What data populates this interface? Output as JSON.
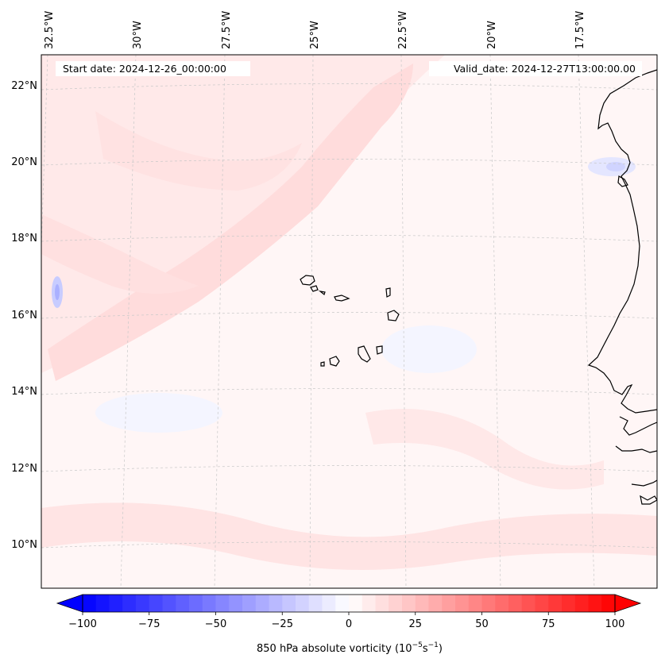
{
  "header": {
    "start_label": "Start date: 2024-12-26_00:00:00",
    "valid_label": "Valid_date: 2024-12-27T13:00:00.00"
  },
  "longitude_ticks": [
    "32.5°W",
    "30°W",
    "27.5°W",
    "25°W",
    "22.5°W",
    "20°W",
    "17.5°W"
  ],
  "latitude_ticks": [
    "22°N",
    "20°N",
    "18°N",
    "16°N",
    "14°N",
    "12°N",
    "10°N"
  ],
  "colorbar": {
    "label": "850 hPa absolute vorticity (10",
    "label_exp1": "−5",
    "label_mid": "s",
    "label_exp2": "−1",
    "label_end": ")",
    "tick_labels": [
      "−100",
      "−75",
      "−50",
      "−25",
      "0",
      "25",
      "50",
      "75",
      "100"
    ],
    "tick_values": [
      -100,
      -75,
      -50,
      -25,
      0,
      25,
      50,
      75,
      100
    ],
    "min": -100,
    "max": 100,
    "step": 5,
    "low_color": "#0000ff",
    "high_color": "#ff0000"
  },
  "colors": {
    "background_field": "#fff6f6",
    "positive_band": "#ffdcdc",
    "negative_patch": "#dde0ff",
    "coastline": "#000000",
    "gridline": "#c8c8c8"
  }
}
